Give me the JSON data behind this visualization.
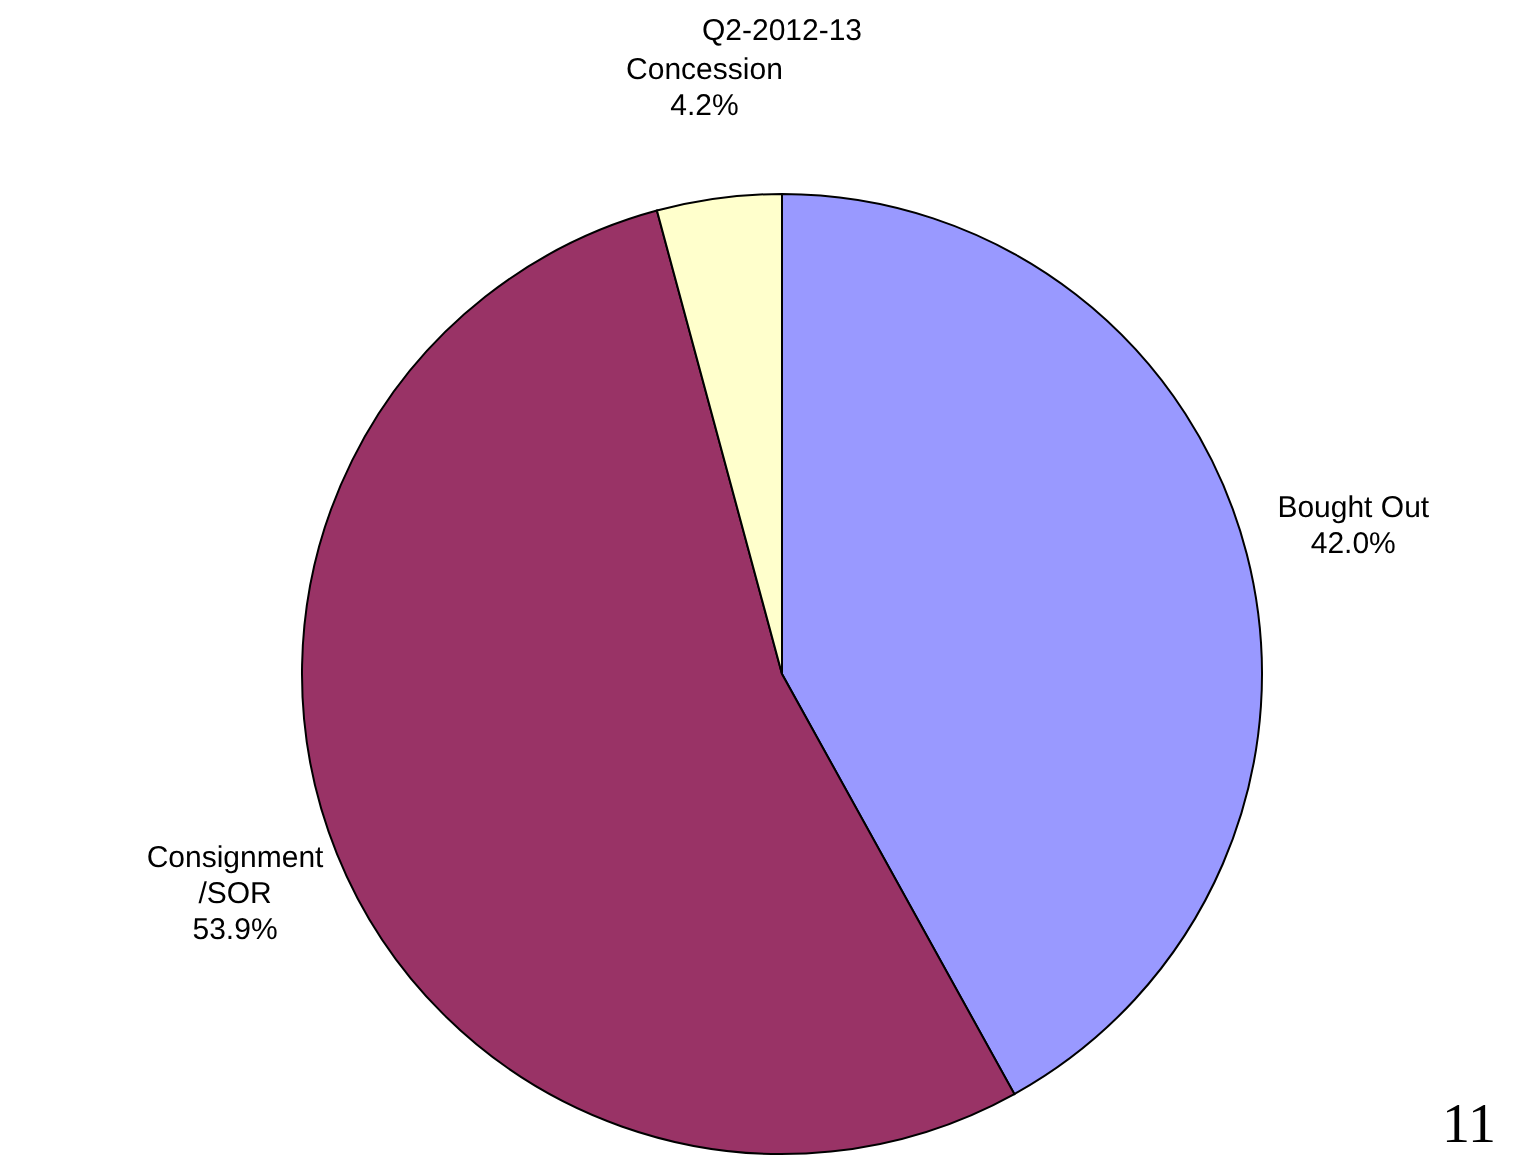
{
  "chart_data": {
    "type": "pie",
    "title": "Q2-2012-13",
    "categories": [
      "Bought Out",
      "Consignment /SOR",
      "Concession"
    ],
    "values": [
      42.0,
      53.9,
      4.2
    ],
    "colors": [
      "#9999ff",
      "#993366",
      "#ffffcc"
    ],
    "value_labels": [
      "42.0%",
      "53.9%",
      "4.2%"
    ],
    "annotations": [
      "11"
    ]
  }
}
